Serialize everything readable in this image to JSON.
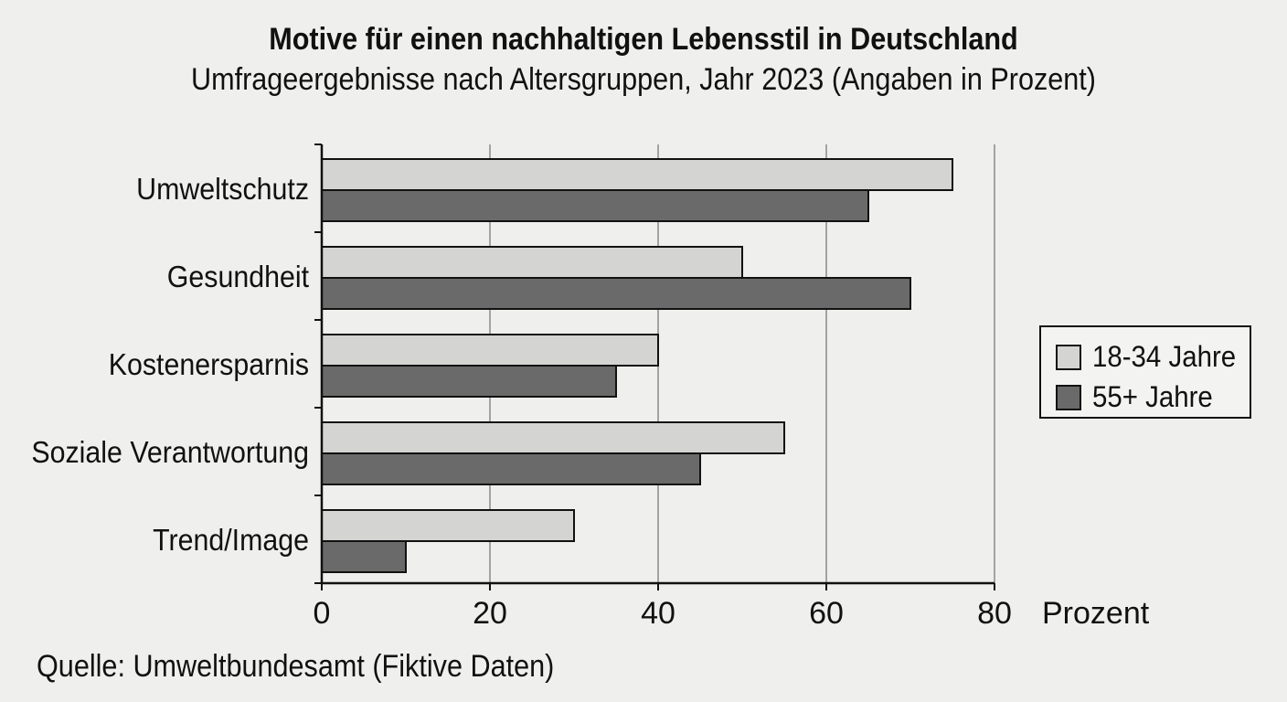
{
  "header": {
    "title": "Motive für einen nachhaltigen Lebensstil in Deutschland",
    "subtitle": "Umfrageergebnisse nach Altersgruppen, Jahr 2023 (Angaben in Prozent)"
  },
  "footer": {
    "source": "Quelle: Umweltbundesamt (Fiktive Daten)"
  },
  "chart_data": {
    "type": "bar",
    "orientation": "horizontal",
    "title": "Motive für einen nachhaltigen Lebensstil in Deutschland",
    "subtitle": "Umfrageergebnisse nach Altersgruppen, Jahr 2023 (Angaben in Prozent)",
    "categories": [
      "Umweltschutz",
      "Gesundheit",
      "Kostenersparnis",
      "Soziale Verantwortung",
      "Trend/Image"
    ],
    "series": [
      {
        "name": "18-34 Jahre",
        "values": [
          75,
          50,
          40,
          55,
          30
        ],
        "color": "#d4d4d2"
      },
      {
        "name": "55+ Jahre",
        "values": [
          65,
          70,
          35,
          45,
          10
        ],
        "color": "#6a6a6a"
      }
    ],
    "xlabel": "Prozent",
    "ylabel": "",
    "xlim": [
      0,
      80
    ],
    "xticks": [
      0,
      20,
      40,
      60,
      80
    ],
    "grid": true,
    "legend_position": "right"
  }
}
